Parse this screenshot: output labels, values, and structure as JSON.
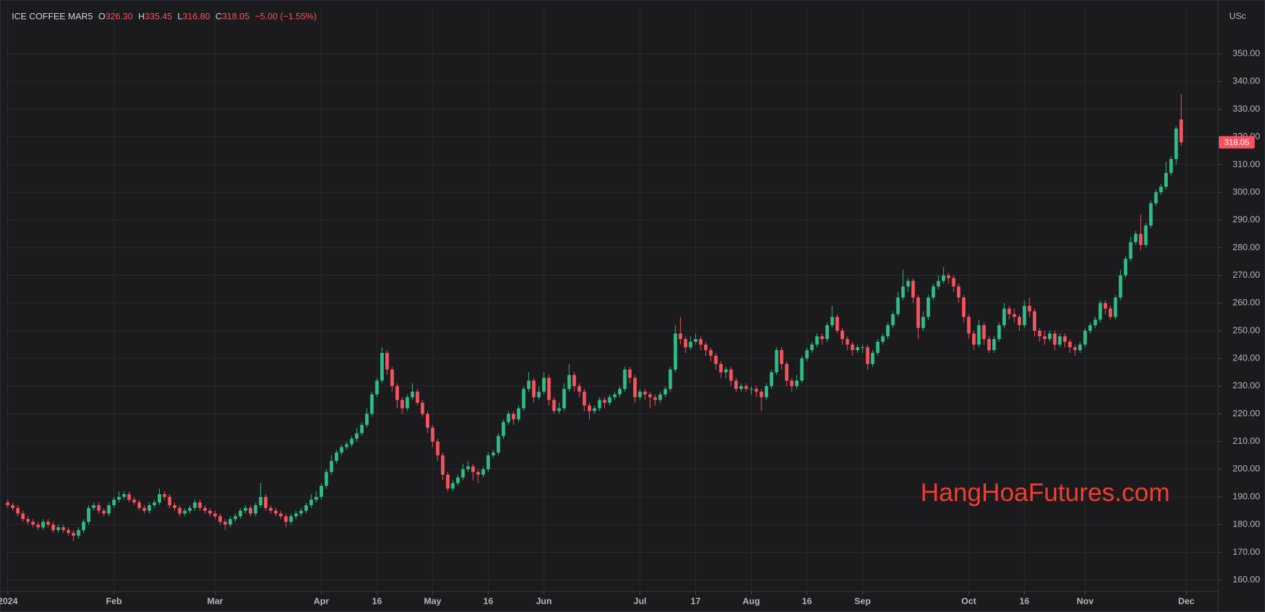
{
  "chart_data": {
    "type": "candlestick",
    "header": {
      "symbol": "ICE COFFEE MAR5",
      "fields": [
        {
          "key": "O",
          "value": "326.30"
        },
        {
          "key": "H",
          "value": "335.45"
        },
        {
          "key": "L",
          "value": "316.80"
        },
        {
          "key": "C",
          "value": "318.05"
        }
      ],
      "change": "−5.00 (−1.55%)"
    },
    "y_unit": "USc",
    "watermark": "HangHoaFutures.com",
    "up_color": "#2ebd85",
    "down_color": "#f7525f",
    "grid": true,
    "xlim": [
      -0.3,
      239.3
    ],
    "ylim": [
      155.9,
      367.2
    ],
    "xticks": [
      {
        "value": 0,
        "label": "2024"
      },
      {
        "value": 21,
        "label": "Feb"
      },
      {
        "value": 41,
        "label": "Mar"
      },
      {
        "value": 62,
        "label": "Apr"
      },
      {
        "value": 73,
        "label": "16"
      },
      {
        "value": 84,
        "label": "May"
      },
      {
        "value": 95,
        "label": "16"
      },
      {
        "value": 106,
        "label": "Jun"
      },
      {
        "value": 125,
        "label": "Jul"
      },
      {
        "value": 136,
        "label": "17"
      },
      {
        "value": 147,
        "label": "Aug"
      },
      {
        "value": 158,
        "label": "16"
      },
      {
        "value": 169,
        "label": "Sep"
      },
      {
        "value": 190,
        "label": "Oct"
      },
      {
        "value": 201,
        "label": "16"
      },
      {
        "value": 213,
        "label": "Nov"
      },
      {
        "value": 233,
        "label": "Dec"
      }
    ],
    "yticks": [
      {
        "value": 160,
        "label": "160.00"
      },
      {
        "value": 170,
        "label": "170.00"
      },
      {
        "value": 180,
        "label": "180.00"
      },
      {
        "value": 190,
        "label": "190.00"
      },
      {
        "value": 200,
        "label": "200.00"
      },
      {
        "value": 210,
        "label": "210.00"
      },
      {
        "value": 220,
        "label": "220.00"
      },
      {
        "value": 230,
        "label": "230.00"
      },
      {
        "value": 240,
        "label": "240.00"
      },
      {
        "value": 250,
        "label": "250.00"
      },
      {
        "value": 260,
        "label": "260.00"
      },
      {
        "value": 270,
        "label": "270.00"
      },
      {
        "value": 280,
        "label": "280.00"
      },
      {
        "value": 290,
        "label": "290.00"
      },
      {
        "value": 300,
        "label": "300.00"
      },
      {
        "value": 310,
        "label": "310.00"
      },
      {
        "value": 320,
        "label": "320.00"
      },
      {
        "value": 330,
        "label": "330.00"
      },
      {
        "value": 340,
        "label": "340.00"
      },
      {
        "value": 350,
        "label": "350.00"
      }
    ],
    "open": [
      188,
      187,
      186,
      184,
      182,
      181,
      180,
      179,
      181,
      180,
      178,
      179,
      178,
      177,
      176,
      178,
      181,
      186,
      187,
      185,
      184,
      187,
      189,
      190,
      191,
      189,
      188,
      186,
      185,
      187,
      188,
      191,
      190,
      187,
      186,
      184,
      185,
      186,
      188,
      186,
      185,
      184,
      183,
      181,
      180,
      182,
      183,
      185,
      186,
      184,
      187,
      190,
      186,
      185,
      184,
      183,
      181,
      183,
      184,
      185,
      187,
      189,
      190,
      194,
      199,
      203,
      206,
      208,
      209,
      211,
      213,
      216,
      220,
      227,
      232,
      242,
      236,
      230,
      225,
      222,
      226,
      228,
      224,
      220,
      215,
      210,
      205,
      198,
      193,
      195,
      197,
      200,
      201,
      199,
      198,
      200,
      205,
      206,
      212,
      217,
      220,
      218,
      222,
      229,
      232,
      226,
      228,
      233,
      225,
      221,
      222,
      229,
      234,
      230,
      228,
      223,
      221,
      222,
      225,
      224,
      226,
      227,
      229,
      236,
      233,
      226,
      228,
      227,
      226,
      225,
      227,
      229,
      236,
      249,
      247,
      244,
      246,
      247,
      245,
      243,
      241,
      238,
      235,
      236,
      232,
      229,
      230,
      229,
      229,
      228,
      226,
      230,
      235,
      243,
      238,
      232,
      230,
      232,
      240,
      243,
      245,
      248,
      247,
      252,
      255,
      250,
      247,
      245,
      243,
      244,
      244,
      238,
      242,
      246,
      248,
      252,
      256,
      262,
      266,
      268,
      262,
      251,
      255,
      262,
      266,
      268,
      270,
      269,
      266,
      262,
      255,
      249,
      245,
      252,
      247,
      243,
      247,
      252,
      258,
      256,
      255,
      252,
      259,
      257,
      250,
      248,
      247,
      249,
      245,
      248,
      246,
      244,
      243,
      245,
      250,
      252,
      254,
      260,
      258,
      255,
      262,
      270,
      276,
      282,
      285,
      281,
      288,
      296,
      300,
      302,
      307,
      312,
      326.3
    ],
    "high": [
      189,
      188,
      187,
      185,
      183,
      182,
      181,
      182,
      182,
      181,
      180,
      180,
      179,
      178,
      179,
      182,
      187,
      188,
      188,
      186,
      188,
      190,
      192,
      192,
      192,
      190,
      189,
      187,
      188,
      189,
      193,
      192,
      191,
      188,
      187,
      186,
      187,
      189,
      189,
      187,
      186,
      185,
      184,
      182,
      183,
      184,
      186,
      187,
      187,
      188,
      195,
      191,
      187,
      186,
      185,
      184,
      184,
      185,
      186,
      188,
      191,
      192,
      195,
      200,
      205,
      207,
      209,
      210,
      212,
      215,
      217,
      222,
      228,
      233,
      244,
      243,
      237,
      231,
      226,
      227,
      231,
      229,
      225,
      221,
      216,
      211,
      206,
      199,
      196,
      198,
      202,
      203,
      202,
      200,
      201,
      206,
      207,
      213,
      218,
      221,
      221,
      223,
      230,
      235,
      233,
      230,
      235,
      234,
      226,
      224,
      231,
      238,
      235,
      231,
      229,
      224,
      223,
      226,
      226,
      227,
      228,
      230,
      237,
      237,
      234,
      229,
      229,
      228,
      227,
      228,
      230,
      237,
      252,
      255,
      248,
      248,
      249,
      248,
      246,
      244,
      242,
      239,
      237,
      237,
      233,
      231,
      231,
      230,
      230,
      229,
      231,
      236,
      244,
      244,
      239,
      233,
      234,
      241,
      244,
      246,
      249,
      249,
      253,
      259,
      256,
      251,
      248,
      246,
      245,
      245,
      245,
      243,
      247,
      249,
      253,
      257,
      264,
      272,
      269,
      269,
      263,
      257,
      263,
      267,
      270,
      273,
      271,
      270,
      267,
      263,
      256,
      250,
      254,
      253,
      248,
      248,
      253,
      260,
      259,
      258,
      256,
      261,
      262,
      258,
      251,
      250,
      250,
      250,
      249,
      249,
      247,
      245,
      246,
      251,
      253,
      255,
      261,
      261,
      259,
      263,
      272,
      277,
      284,
      286,
      292,
      289,
      297,
      301,
      303,
      311,
      313,
      324,
      335.45
    ],
    "low": [
      186,
      185,
      183,
      181,
      180,
      179,
      178,
      178,
      179,
      177,
      177,
      177,
      176,
      174,
      175,
      177,
      180,
      185,
      184,
      183,
      183,
      186,
      188,
      189,
      188,
      187,
      185,
      184,
      184,
      186,
      187,
      189,
      186,
      185,
      183,
      183,
      184,
      185,
      185,
      184,
      183,
      182,
      180,
      178,
      179,
      181,
      182,
      184,
      183,
      183,
      186,
      185,
      184,
      183,
      182,
      179,
      180,
      182,
      183,
      184,
      186,
      188,
      189,
      193,
      198,
      202,
      205,
      207,
      208,
      210,
      212,
      215,
      219,
      226,
      231,
      234,
      228,
      222,
      220,
      221,
      225,
      223,
      219,
      213,
      208,
      203,
      196,
      192,
      192,
      194,
      196,
      199,
      196,
      195,
      197,
      199,
      204,
      205,
      211,
      216,
      216,
      217,
      221,
      228,
      224,
      225,
      227,
      223,
      220,
      220,
      221,
      228,
      228,
      226,
      221,
      218,
      220,
      221,
      222,
      223,
      225,
      226,
      228,
      231,
      224,
      225,
      225,
      222,
      223,
      224,
      226,
      228,
      235,
      245,
      242,
      243,
      245,
      243,
      241,
      239,
      236,
      233,
      233,
      230,
      228,
      228,
      228,
      227,
      226,
      221,
      225,
      229,
      234,
      236,
      230,
      228,
      229,
      231,
      239,
      242,
      244,
      245,
      246,
      251,
      249,
      245,
      243,
      241,
      242,
      242,
      236,
      237,
      241,
      245,
      247,
      251,
      255,
      261,
      264,
      260,
      247,
      250,
      254,
      261,
      265,
      267,
      267,
      264,
      260,
      253,
      247,
      243,
      244,
      245,
      242,
      242,
      246,
      251,
      254,
      253,
      250,
      251,
      255,
      248,
      246,
      245,
      246,
      243,
      244,
      244,
      242,
      241,
      242,
      244,
      249,
      251,
      253,
      256,
      254,
      254,
      261,
      269,
      275,
      281,
      279,
      280,
      287,
      295,
      299,
      301,
      306,
      310,
      316.8
    ],
    "close": [
      187,
      186,
      184,
      182,
      181,
      180,
      179,
      181,
      180,
      178,
      179,
      178,
      177,
      176,
      178,
      181,
      186,
      187,
      185,
      184,
      187,
      189,
      190,
      191,
      189,
      188,
      186,
      185,
      187,
      188,
      191,
      190,
      187,
      186,
      184,
      185,
      186,
      188,
      186,
      185,
      184,
      183,
      181,
      180,
      182,
      183,
      185,
      186,
      184,
      187,
      190,
      186,
      185,
      184,
      183,
      181,
      183,
      184,
      185,
      187,
      189,
      190,
      194,
      199,
      203,
      206,
      208,
      209,
      211,
      213,
      216,
      220,
      227,
      232,
      242,
      236,
      230,
      225,
      222,
      226,
      228,
      224,
      220,
      215,
      210,
      205,
      198,
      193,
      195,
      197,
      200,
      201,
      199,
      198,
      200,
      205,
      206,
      212,
      217,
      220,
      218,
      222,
      229,
      232,
      226,
      228,
      233,
      225,
      221,
      222,
      229,
      234,
      230,
      228,
      223,
      221,
      222,
      225,
      224,
      226,
      227,
      229,
      236,
      233,
      226,
      228,
      227,
      226,
      225,
      227,
      229,
      236,
      249,
      247,
      244,
      246,
      247,
      245,
      243,
      241,
      238,
      235,
      236,
      232,
      229,
      230,
      229,
      229,
      228,
      226,
      230,
      235,
      243,
      238,
      232,
      230,
      232,
      240,
      243,
      245,
      248,
      247,
      252,
      255,
      250,
      247,
      245,
      243,
      244,
      244,
      238,
      242,
      246,
      248,
      252,
      256,
      262,
      266,
      268,
      262,
      251,
      255,
      262,
      266,
      268,
      270,
      269,
      266,
      262,
      255,
      249,
      245,
      252,
      247,
      243,
      247,
      252,
      258,
      256,
      255,
      252,
      259,
      257,
      250,
      248,
      247,
      249,
      245,
      248,
      246,
      244,
      243,
      245,
      250,
      252,
      254,
      260,
      258,
      255,
      262,
      270,
      276,
      282,
      285,
      281,
      288,
      296,
      300,
      302,
      307,
      312,
      323,
      318.05
    ]
  }
}
